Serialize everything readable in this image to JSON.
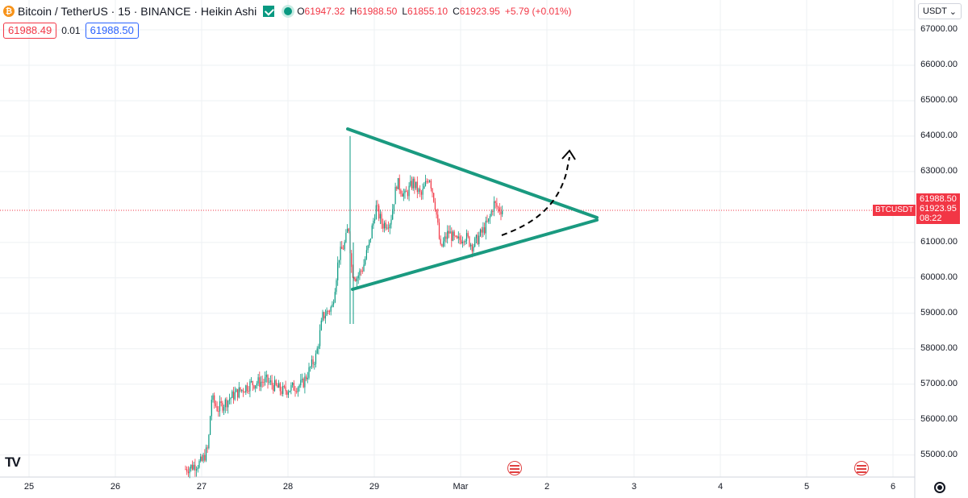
{
  "legend": {
    "title": "Bitcoin / TetherUS · 15 · BINANCE · Heikin Ashi",
    "open_label": "O",
    "open": "61947.32",
    "high_label": "H",
    "high": "61988.50",
    "low_label": "L",
    "low": "61855.10",
    "close_label": "C",
    "close": "61923.95",
    "change": "+5.79 (+0.01%)"
  },
  "trade": {
    "sell_price": "61988.49",
    "spread": "0.01",
    "buy_price": "61988.50"
  },
  "currency": {
    "label": "USDT"
  },
  "price_axis": {
    "labels": [
      "67000.00",
      "66000.00",
      "65000.00",
      "64000.00",
      "63000.00",
      "61000.00",
      "60000.00",
      "59000.00",
      "58000.00",
      "57000.00",
      "56000.00",
      "55000.00"
    ]
  },
  "time_axis": {
    "labels": [
      "25",
      "26",
      "27",
      "28",
      "29",
      "Mar",
      "2",
      "3",
      "4",
      "5",
      "6"
    ]
  },
  "price_tag": {
    "high": "61988.50",
    "last": "61923.95",
    "countdown": "08:22",
    "symbol": "BTCUSDT"
  },
  "icons": {
    "logo": "tradingview-logo",
    "settings": "gear-icon",
    "event": "us-flag-icon"
  },
  "colors": {
    "up": "#089981",
    "down": "#f23645",
    "pattern": "#1a9a80",
    "grid": "#eef0f3"
  },
  "chart_data": {
    "type": "candlestick",
    "symbol": "BTCUSDT",
    "interval": "15",
    "ylim": [
      54500,
      67600
    ],
    "description_points": [
      {
        "x": "Feb 27",
        "y": 54700
      },
      {
        "x": "Feb 27",
        "y": 56500
      },
      {
        "x": "Feb 28",
        "y": 57000
      },
      {
        "x": "Feb 28",
        "y": 59000
      },
      {
        "x": "Feb 28",
        "y": 63800
      },
      {
        "x": "Feb 29",
        "y": 61500
      },
      {
        "x": "Feb 29",
        "y": 63200
      },
      {
        "x": "Mar 1",
        "y": 61000
      },
      {
        "x": "Mar 1",
        "y": 61924
      }
    ]
  }
}
